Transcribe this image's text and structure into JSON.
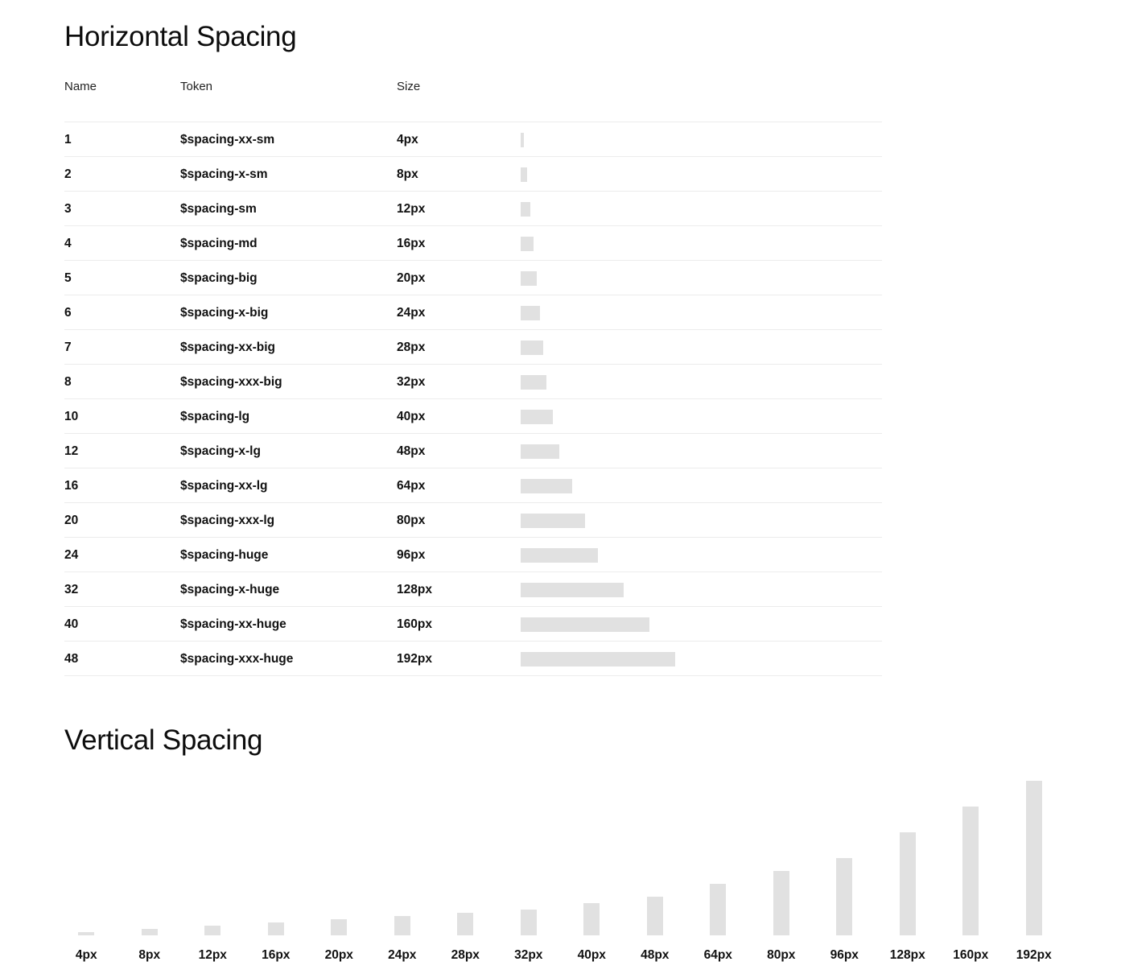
{
  "horizontal": {
    "title": "Horizontal Spacing",
    "headers": {
      "name": "Name",
      "token": "Token",
      "size": "Size"
    },
    "rows": [
      {
        "name": "1",
        "token": "$spacing-xx-sm",
        "size": "4px",
        "value": 4
      },
      {
        "name": "2",
        "token": "$spacing-x-sm",
        "size": "8px",
        "value": 8
      },
      {
        "name": "3",
        "token": "$spacing-sm",
        "size": "12px",
        "value": 12
      },
      {
        "name": "4",
        "token": "$spacing-md",
        "size": "16px",
        "value": 16
      },
      {
        "name": "5",
        "token": "$spacing-big",
        "size": "20px",
        "value": 20
      },
      {
        "name": "6",
        "token": "$spacing-x-big",
        "size": "24px",
        "value": 24
      },
      {
        "name": "7",
        "token": "$spacing-xx-big",
        "size": "28px",
        "value": 28
      },
      {
        "name": "8",
        "token": "$spacing-xxx-big",
        "size": "32px",
        "value": 32
      },
      {
        "name": "10",
        "token": "$spacing-lg",
        "size": "40px",
        "value": 40
      },
      {
        "name": "12",
        "token": "$spacing-x-lg",
        "size": "48px",
        "value": 48
      },
      {
        "name": "16",
        "token": "$spacing-xx-lg",
        "size": "64px",
        "value": 64
      },
      {
        "name": "20",
        "token": "$spacing-xxx-lg",
        "size": "80px",
        "value": 80
      },
      {
        "name": "24",
        "token": "$spacing-huge",
        "size": "96px",
        "value": 96
      },
      {
        "name": "32",
        "token": "$spacing-x-huge",
        "size": "128px",
        "value": 128
      },
      {
        "name": "40",
        "token": "$spacing-xx-huge",
        "size": "160px",
        "value": 160
      },
      {
        "name": "48",
        "token": "$spacing-xxx-huge",
        "size": "192px",
        "value": 192
      }
    ]
  },
  "vertical": {
    "title": "Vertical Spacing",
    "items": [
      {
        "label": "4px",
        "value": 4
      },
      {
        "label": "8px",
        "value": 8
      },
      {
        "label": "12px",
        "value": 12
      },
      {
        "label": "16px",
        "value": 16
      },
      {
        "label": "20px",
        "value": 20
      },
      {
        "label": "24px",
        "value": 24
      },
      {
        "label": "28px",
        "value": 28
      },
      {
        "label": "32px",
        "value": 32
      },
      {
        "label": "40px",
        "value": 40
      },
      {
        "label": "48px",
        "value": 48
      },
      {
        "label": "64px",
        "value": 64
      },
      {
        "label": "80px",
        "value": 80
      },
      {
        "label": "96px",
        "value": 96
      },
      {
        "label": "128px",
        "value": 128
      },
      {
        "label": "160px",
        "value": 160
      },
      {
        "label": "192px",
        "value": 192
      }
    ]
  },
  "colors": {
    "swatch": "#e1e1e1",
    "text": "#111111",
    "divider": "#ececec"
  }
}
